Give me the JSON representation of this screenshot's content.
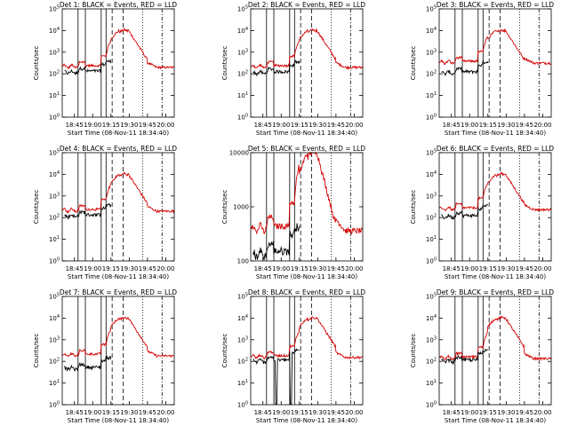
{
  "figure": {
    "window_x_ticks": [
      "18:45",
      "19:00",
      "19:15",
      "19:30",
      "19:45",
      "20:00"
    ],
    "xlabel": "Start Time (08-Nov-11 18:34:40)",
    "ylabel": "Counts/sec"
  },
  "chart_data": [
    {
      "type": "line",
      "title": "Det 1: BLACK = Events, RED = LLD",
      "ylabel": "Counts/sec",
      "xlabel": "Start Time (08-Nov-11 18:34:40)",
      "x_unit": "minutes after 18:34:40",
      "xlim": [
        0,
        92
      ],
      "yscale": "log",
      "ylim": [
        1,
        100000
      ],
      "ytick_labels": [
        "10^0",
        "10^1",
        "10^2",
        "10^3",
        "10^4",
        "10^5"
      ],
      "xtick_labels": [
        "18:45",
        "19:00",
        "19:15",
        "19:30",
        "19:45",
        "20:00"
      ],
      "colors": {
        "events": "#000000",
        "lld": "#d40000"
      },
      "flare_peak": 11000,
      "events_level": 150,
      "lld_level": 220,
      "dip_at": []
    },
    {
      "type": "line",
      "title": "Det 2: BLACK = Events, RED = LLD",
      "ylabel": "Counts/sec",
      "xlabel": "Start Time (08-Nov-11 18:34:40)",
      "x_unit": "minutes after 18:34:40",
      "xlim": [
        0,
        92
      ],
      "yscale": "log",
      "ylim": [
        1,
        100000
      ],
      "ytick_labels": [
        "10^0",
        "10^1",
        "10^2",
        "10^3",
        "10^4",
        "10^5"
      ],
      "xtick_labels": [
        "18:45",
        "19:00",
        "19:15",
        "19:30",
        "19:45",
        "20:00"
      ],
      "colors": {
        "events": "#000000",
        "lld": "#d40000"
      },
      "flare_peak": 11000,
      "events_level": 140,
      "lld_level": 220,
      "dip_at": []
    },
    {
      "type": "line",
      "title": "Det 3: BLACK = Events, RED = LLD",
      "ylabel": "Counts/sec",
      "xlabel": "Start Time (08-Nov-11 18:34:40)",
      "x_unit": "minutes after 18:34:40",
      "xlim": [
        0,
        92
      ],
      "yscale": "log",
      "ylim": [
        1,
        100000
      ],
      "ytick_labels": [
        "10^0",
        "10^1",
        "10^2",
        "10^3",
        "10^4",
        "10^5"
      ],
      "xtick_labels": [
        "18:45",
        "19:00",
        "19:15",
        "19:30",
        "19:45",
        "20:00"
      ],
      "colors": {
        "events": "#000000",
        "lld": "#d40000"
      },
      "flare_peak": 11000,
      "events_level": 140,
      "lld_level": 350,
      "dip_at": []
    },
    {
      "type": "line",
      "title": "Det 4: BLACK = Events, RED = LLD",
      "ylabel": "Counts/sec",
      "xlabel": "Start Time (08-Nov-11 18:34:40)",
      "x_unit": "minutes after 18:34:40",
      "xlim": [
        0,
        92
      ],
      "yscale": "log",
      "ylim": [
        1,
        100000
      ],
      "ytick_labels": [
        "10^0",
        "10^1",
        "10^2",
        "10^3",
        "10^4",
        "10^5"
      ],
      "xtick_labels": [
        "18:45",
        "19:00",
        "19:15",
        "19:30",
        "19:45",
        "20:00"
      ],
      "colors": {
        "events": "#000000",
        "lld": "#d40000"
      },
      "flare_peak": 11000,
      "events_level": 150,
      "lld_level": 220,
      "dip_at": []
    },
    {
      "type": "line",
      "title": "Det 5: BLACK = Events, RED = LLD",
      "ylabel": "Counts/sec",
      "xlabel": "Start Time (08-Nov-11 18:34:40)",
      "x_unit": "minutes after 18:34:40",
      "xlim": [
        0,
        92
      ],
      "yscale": "log",
      "ylim": [
        100,
        10000
      ],
      "ytick_labels": [
        "100",
        "1000",
        "10000"
      ],
      "xtick_labels": [
        "18:45",
        "19:00",
        "19:15",
        "19:30",
        "19:45",
        "20:00"
      ],
      "colors": {
        "events": "#000000",
        "lld": "#d40000"
      },
      "flare_peak": 11000,
      "events_level": 170,
      "lld_level": 400,
      "dip_at": []
    },
    {
      "type": "line",
      "title": "Det 6: BLACK = Events, RED = LLD",
      "ylabel": "Counts/sec",
      "xlabel": "Start Time (08-Nov-11 18:34:40)",
      "x_unit": "minutes after 18:34:40",
      "xlim": [
        0,
        92
      ],
      "yscale": "log",
      "ylim": [
        1,
        100000
      ],
      "ytick_labels": [
        "10^0",
        "10^1",
        "10^2",
        "10^3",
        "10^4",
        "10^5"
      ],
      "xtick_labels": [
        "18:45",
        "19:00",
        "19:15",
        "19:30",
        "19:45",
        "20:00"
      ],
      "colors": {
        "events": "#000000",
        "lld": "#d40000"
      },
      "flare_peak": 11000,
      "events_level": 140,
      "lld_level": 260,
      "dip_at": []
    },
    {
      "type": "line",
      "title": "Det 7: BLACK = Events, RED = LLD",
      "ylabel": "Counts/sec",
      "xlabel": "Start Time (08-Nov-11 18:34:40)",
      "x_unit": "minutes after 18:34:40",
      "xlim": [
        0,
        92
      ],
      "yscale": "log",
      "ylim": [
        1,
        100000
      ],
      "ytick_labels": [
        "10^0",
        "10^1",
        "10^2",
        "10^3",
        "10^4",
        "10^5"
      ],
      "xtick_labels": [
        "18:45",
        "19:00",
        "19:15",
        "19:30",
        "19:45",
        "20:00"
      ],
      "colors": {
        "events": "#000000",
        "lld": "#d40000"
      },
      "flare_peak": 11000,
      "events_level": 60,
      "lld_level": 200,
      "dip_at": []
    },
    {
      "type": "line",
      "title": "Det 8: BLACK = Events, RED = LLD",
      "ylabel": "Counts/sec",
      "xlabel": "Start Time (08-Nov-11 18:34:40)",
      "x_unit": "minutes after 18:34:40",
      "xlim": [
        0,
        92
      ],
      "yscale": "log",
      "ylim": [
        1,
        100000
      ],
      "ytick_labels": [
        "10^0",
        "10^1",
        "10^2",
        "10^3",
        "10^4",
        "10^5"
      ],
      "xtick_labels": [
        "18:45",
        "19:00",
        "19:15",
        "19:30",
        "19:45",
        "20:00"
      ],
      "colors": {
        "events": "#000000",
        "lld": "#d40000"
      },
      "flare_peak": 11000,
      "events_level": 130,
      "lld_level": 170,
      "dip_at": [
        21,
        33
      ]
    },
    {
      "type": "line",
      "title": "Det 9: BLACK = Events, RED = LLD",
      "ylabel": "Counts/sec",
      "xlabel": "Start Time (08-Nov-11 18:34:40)",
      "x_unit": "minutes after 18:34:40",
      "xlim": [
        0,
        92
      ],
      "yscale": "log",
      "ylim": [
        1,
        100000
      ],
      "ytick_labels": [
        "10^0",
        "10^1",
        "10^2",
        "10^3",
        "10^4",
        "10^5"
      ],
      "xtick_labels": [
        "18:45",
        "19:00",
        "19:15",
        "19:30",
        "19:45",
        "20:00"
      ],
      "colors": {
        "events": "#000000",
        "lld": "#d40000"
      },
      "flare_peak": 11000,
      "events_level": 130,
      "lld_level": 150,
      "dip_at": []
    }
  ]
}
